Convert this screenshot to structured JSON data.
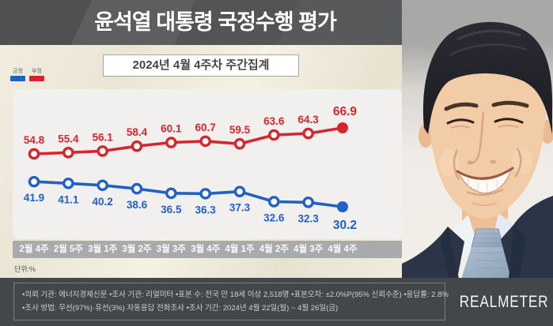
{
  "header": {
    "title": "윤석열 대통령 국정수행 평가"
  },
  "subtitle": "2024년 4월 4주차 주간집계",
  "legend": {
    "positive_label": "긍정",
    "negative_label": "부정",
    "positive_color": "#2160c6",
    "negative_color": "#d7252c"
  },
  "unit_label": "단위:%",
  "chart_data": {
    "type": "line",
    "title": "윤석열 대통령 국정수행 평가 주간집계",
    "categories": [
      "2월 4주",
      "2월 5주",
      "3월 1주",
      "3월 2주",
      "3월 3주",
      "3월 4주",
      "4월 1주",
      "4월 2주",
      "4월 3주",
      "4월 4주"
    ],
    "series": [
      {
        "name": "부정",
        "color": "#d7252c",
        "label_position": "above",
        "values": [
          54.8,
          55.4,
          56.1,
          58.4,
          60.1,
          60.7,
          59.5,
          63.6,
          64.3,
          66.9
        ]
      },
      {
        "name": "긍정",
        "color": "#2160c6",
        "label_position": "below",
        "values": [
          41.9,
          41.1,
          40.2,
          38.6,
          36.5,
          36.3,
          37.3,
          32.6,
          32.3,
          30.2
        ]
      }
    ],
    "unit": "%",
    "ylim": [
      25,
      75
    ],
    "grid": false,
    "legend_position": "top-left",
    "last_point_emphasized": true
  },
  "footer": {
    "info_line1": "•의뢰 기관: 에너지경제신문 •조사 기관: 리얼미터 •표본 수: 전국 만 18세 이상 2,518명 •표본오차: ±2.0%P(95% 신뢰수준) •응답률: 2.8%",
    "info_line2": "•조사 방법: 무선(97%)·유선(3%) 자동응답 전화조사 •조사 기간: 2024년 4월 22일(월) ~ 4월 26일(금)",
    "logo": "REALMETER"
  }
}
